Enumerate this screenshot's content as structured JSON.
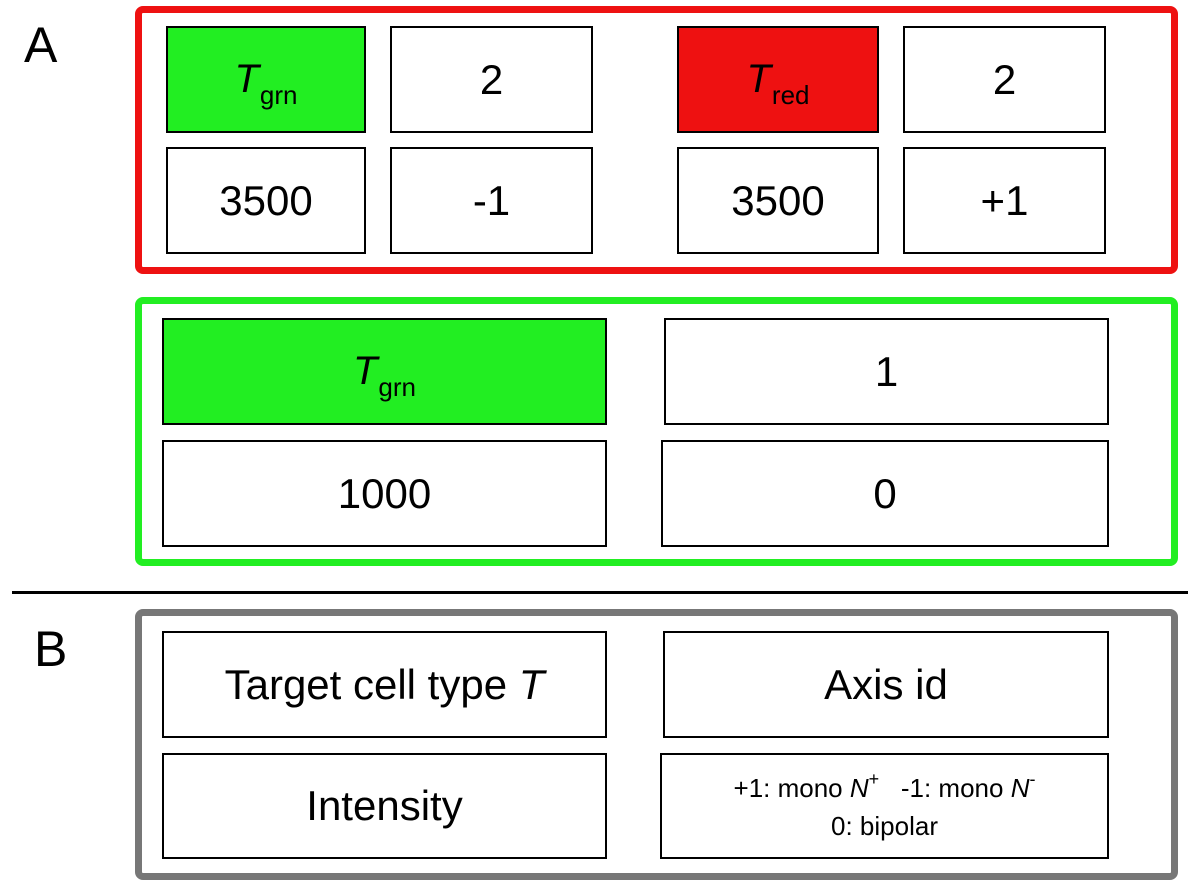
{
  "panel_a": {
    "letter": "A",
    "red_group": {
      "color": "#ee1111",
      "left_block": {
        "target": {
          "symbol": "T",
          "subscript": "grn",
          "color": "#22ee22"
        },
        "axis_id": "2",
        "intensity": "3500",
        "polarity": "-1"
      },
      "right_block": {
        "target": {
          "symbol": "T",
          "subscript": "red",
          "color": "#ee1111"
        },
        "axis_id": "2",
        "intensity": "3500",
        "polarity": "+1"
      }
    },
    "green_group": {
      "color": "#22ee22",
      "target": {
        "symbol": "T",
        "subscript": "grn",
        "color": "#22ee22"
      },
      "axis_id": "1",
      "intensity": "1000",
      "polarity": "0"
    }
  },
  "panel_b": {
    "letter": "B",
    "frame_color": "#777777",
    "target_label": "Target cell type",
    "target_symbol": "T",
    "axis_label": "Axis id",
    "intensity_label": "Intensity",
    "polarity_legend": {
      "plus_prefix": "+1: mono",
      "plus_symbol": "N",
      "plus_sign": "+",
      "minus_prefix": "-1: mono",
      "minus_symbol": "N",
      "minus_sign": "-",
      "zero": "0: bipolar"
    }
  }
}
